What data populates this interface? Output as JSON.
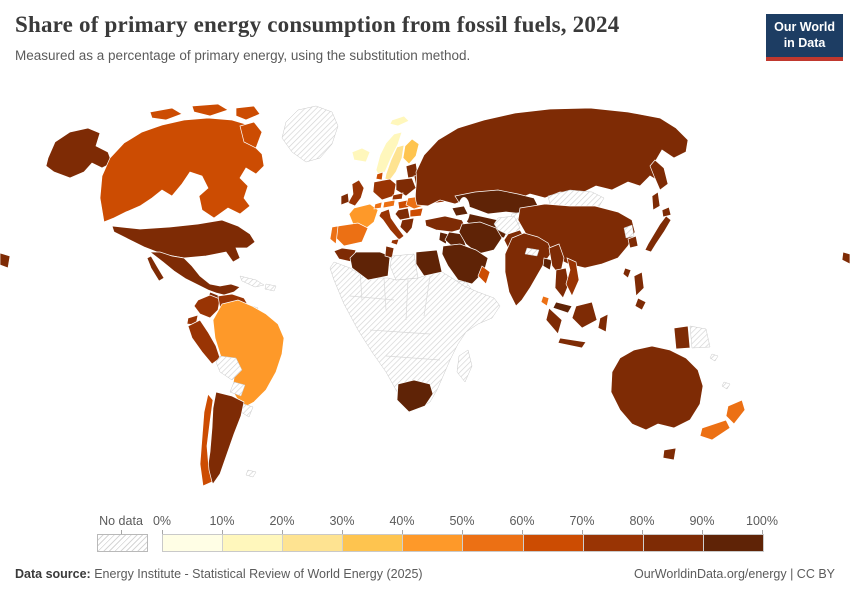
{
  "header": {
    "title": "Share of primary energy consumption from fossil fuels, 2024",
    "subtitle": "Measured as a percentage of primary energy, using the substitution method.",
    "logo": {
      "line1": "Our World",
      "line2": "in Data",
      "bg_color": "#1d3d63",
      "accent_color": "#c0382e"
    }
  },
  "legend": {
    "no_data_label": "No data",
    "tick_labels": [
      "0%",
      "10%",
      "20%",
      "30%",
      "40%",
      "50%",
      "60%",
      "70%",
      "80%",
      "90%",
      "100%"
    ],
    "bin_colors": [
      "#fffee5",
      "#fff7bc",
      "#fee391",
      "#fec44f",
      "#fe9929",
      "#ec7014",
      "#cc4c02",
      "#993404",
      "#7e2b05",
      "#5f2306"
    ]
  },
  "footer": {
    "source_label": "Data source:",
    "source_text": " Energy Institute - Statistical Review of World Energy (2025)",
    "link_text": "OurWorldinData.org/energy",
    "separator": " | ",
    "license_text": "CC BY"
  },
  "chart_data": {
    "type": "choropleth-map",
    "title": "Share of primary energy consumption from fossil fuels",
    "year": 2024,
    "unit": "% of primary energy (substitution method)",
    "bins": [
      "0-10%",
      "10-20%",
      "20-30%",
      "30-40%",
      "40-50%",
      "50-60%",
      "60-70%",
      "70-80%",
      "80-90%",
      "90-100%"
    ],
    "countries": [
      {
        "name": "United States",
        "value": 81
      },
      {
        "name": "Canada",
        "value": 64
      },
      {
        "name": "Mexico",
        "value": 87
      },
      {
        "name": "Guatemala",
        "value": 83
      },
      {
        "name": "Panama",
        "value": 80
      },
      {
        "name": "Colombia",
        "value": 74
      },
      {
        "name": "Venezuela",
        "value": 76
      },
      {
        "name": "Ecuador",
        "value": 78
      },
      {
        "name": "Peru",
        "value": 75
      },
      {
        "name": "Brazil",
        "value": 46
      },
      {
        "name": "Argentina",
        "value": 85
      },
      {
        "name": "Chile",
        "value": 64
      },
      {
        "name": "Iceland",
        "value": 12
      },
      {
        "name": "Norway",
        "value": 17
      },
      {
        "name": "Sweden",
        "value": 24
      },
      {
        "name": "Finland",
        "value": 36
      },
      {
        "name": "Denmark",
        "value": 62
      },
      {
        "name": "United Kingdom",
        "value": 76
      },
      {
        "name": "Ireland",
        "value": 82
      },
      {
        "name": "France",
        "value": 47
      },
      {
        "name": "Spain",
        "value": 57
      },
      {
        "name": "Portugal",
        "value": 58
      },
      {
        "name": "Germany",
        "value": 77
      },
      {
        "name": "Poland",
        "value": 86
      },
      {
        "name": "Czechia",
        "value": 75
      },
      {
        "name": "Austria",
        "value": 56
      },
      {
        "name": "Switzerland",
        "value": 52
      },
      {
        "name": "Italy",
        "value": 78
      },
      {
        "name": "Hungary",
        "value": 69
      },
      {
        "name": "Romania",
        "value": 57
      },
      {
        "name": "Serbia",
        "value": 84
      },
      {
        "name": "Bulgaria",
        "value": 62
      },
      {
        "name": "Greece",
        "value": 80
      },
      {
        "name": "Lithuania",
        "value": 85
      },
      {
        "name": "Belarus",
        "value": 88
      },
      {
        "name": "Ukraine",
        "value": 74
      },
      {
        "name": "Russia",
        "value": 86
      },
      {
        "name": "Turkey",
        "value": 81
      },
      {
        "name": "Azerbaijan",
        "value": 94
      },
      {
        "name": "Jordan",
        "value": 96
      },
      {
        "name": "Iraq",
        "value": 96
      },
      {
        "name": "Saudi Arabia",
        "value": 100
      },
      {
        "name": "Oman",
        "value": 67
      },
      {
        "name": "Iran",
        "value": 99
      },
      {
        "name": "Kazakhstan",
        "value": 95
      },
      {
        "name": "Uzbekistan",
        "value": 97
      },
      {
        "name": "Pakistan",
        "value": 86
      },
      {
        "name": "India",
        "value": 88
      },
      {
        "name": "Sri Lanka",
        "value": 55
      },
      {
        "name": "Bangladesh",
        "value": 98
      },
      {
        "name": "Myanmar",
        "value": 83
      },
      {
        "name": "Thailand",
        "value": 88
      },
      {
        "name": "Vietnam",
        "value": 75
      },
      {
        "name": "Malaysia",
        "value": 94
      },
      {
        "name": "Indonesia",
        "value": 84
      },
      {
        "name": "Philippines",
        "value": 80
      },
      {
        "name": "Taiwan",
        "value": 88
      },
      {
        "name": "China",
        "value": 84
      },
      {
        "name": "South Korea",
        "value": 82
      },
      {
        "name": "Japan",
        "value": 85
      },
      {
        "name": "Morocco",
        "value": 89
      },
      {
        "name": "Algeria",
        "value": 100
      },
      {
        "name": "Tunisia",
        "value": 88
      },
      {
        "name": "Egypt",
        "value": 95
      },
      {
        "name": "South Africa",
        "value": 90
      },
      {
        "name": "Australia",
        "value": 88
      },
      {
        "name": "New Zealand",
        "value": 56
      }
    ],
    "no_data": [
      "Greenland",
      "Cuba",
      "Haiti",
      "Honduras",
      "Nicaragua",
      "Guyana",
      "Suriname",
      "Bolivia",
      "Paraguay",
      "Uruguay",
      "Falkland Islands",
      "Libya",
      "Sudan",
      "Mali",
      "Niger",
      "Chad",
      "Ethiopia",
      "Somalia",
      "Kenya",
      "Tanzania",
      "Democratic Republic of Congo",
      "Angola",
      "Zambia",
      "Zimbabwe",
      "Mozambique",
      "Namibia",
      "Botswana",
      "Madagascar",
      "Yemen",
      "Afghanistan",
      "Mongolia",
      "Nepal",
      "Kyrgyzstan",
      "Tajikistan",
      "North Korea",
      "Papua New Guinea"
    ]
  }
}
